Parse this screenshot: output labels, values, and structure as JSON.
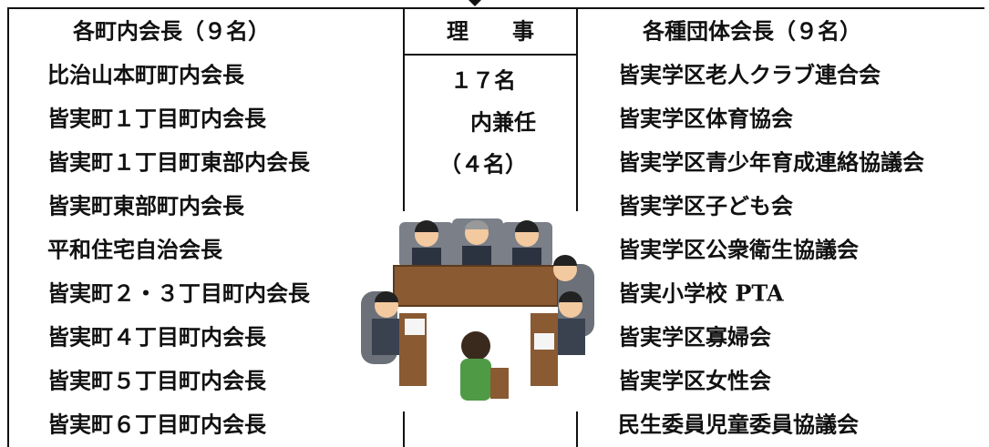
{
  "left": {
    "header": "各町内会長（９名）",
    "items": [
      "比治山本町町内会長",
      "皆実町１丁目町内会長",
      "皆実町１丁目町東部内会長",
      "皆実町東部町内会長",
      "平和住宅自治会長",
      "皆実町２・３丁目町内会長",
      "皆実町４丁目町内会長",
      "皆実町５丁目町内会長",
      "皆実町６丁目町内会長"
    ]
  },
  "middle": {
    "header": "理　　事",
    "lines": [
      "１７名",
      "内兼任",
      "（４名）"
    ]
  },
  "right": {
    "header": "各種団体会長（９名）",
    "items": [
      "皆実学区老人クラブ連合会",
      "皆実学区体育協会",
      "皆実学区青少年育成連絡協議会",
      "皆実学区子ども会",
      "皆実学区公衆衛生協議会",
      "皆実小学校 PTA",
      "皆実学区寡婦会",
      "皆実学区女性会",
      "民生委員児童委員協議会"
    ]
  }
}
